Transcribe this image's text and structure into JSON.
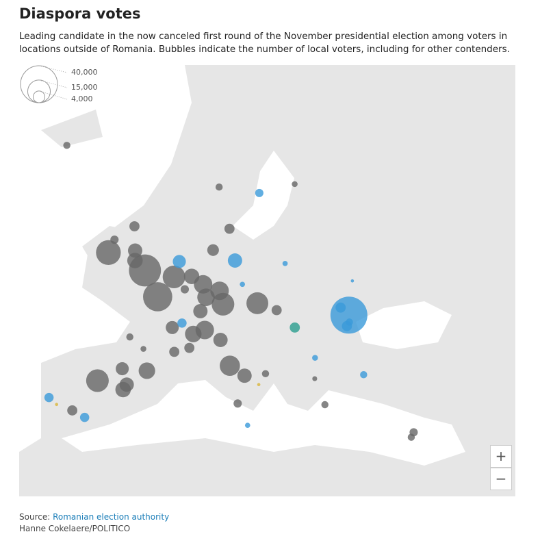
{
  "header": {
    "title": "Diaspora votes",
    "subtitle": "Leading candidate in the now canceled first round of the November presidential election among voters in locations outside of Romania. Bubbles indicate the number of local voters, including for other contenders."
  },
  "legend": {
    "sizes": [
      {
        "value": 40000,
        "label": "40,000"
      },
      {
        "value": 15000,
        "label": "15,000"
      },
      {
        "value": 4000,
        "label": "4,000"
      }
    ]
  },
  "bubbles": [
    {
      "lon": 28.8,
      "lat": 47.0,
      "voters": 40000,
      "color": "#3a9ad9"
    },
    {
      "lon": -0.1,
      "lat": 51.5,
      "voters": 30000,
      "color": "#666666"
    },
    {
      "lon": 2.35,
      "lat": 48.85,
      "voters": 25000,
      "color": "#666666"
    },
    {
      "lon": -6.3,
      "lat": 53.3,
      "voters": 18000,
      "color": "#666666"
    },
    {
      "lon": 4.35,
      "lat": 50.85,
      "voters": 15000,
      "color": "#666666"
    },
    {
      "lon": -3.7,
      "lat": 40.4,
      "voters": 15000,
      "color": "#666666"
    },
    {
      "lon": 11.6,
      "lat": 48.1,
      "voters": 15000,
      "color": "#666666"
    },
    {
      "lon": 16.4,
      "lat": 48.2,
      "voters": 14000,
      "color": "#666666"
    },
    {
      "lon": 12.5,
      "lat": 41.9,
      "voters": 12000,
      "color": "#666666"
    },
    {
      "lon": 8.7,
      "lat": 50.1,
      "voters": 10000,
      "color": "#666666"
    },
    {
      "lon": 11.1,
      "lat": 49.45,
      "voters": 10000,
      "color": "#666666"
    },
    {
      "lon": 9.2,
      "lat": 45.5,
      "voters": 10000,
      "color": "#666666"
    },
    {
      "lon": 9.2,
      "lat": 48.8,
      "voters": 9000,
      "color": "#666666"
    },
    {
      "lon": 7.7,
      "lat": 45.1,
      "voters": 8000,
      "color": "#666666"
    },
    {
      "lon": 2.2,
      "lat": 41.4,
      "voters": 8000,
      "color": "#666666"
    },
    {
      "lon": -1.9,
      "lat": 52.5,
      "voters": 7000,
      "color": "#666666"
    },
    {
      "lon": 6.95,
      "lat": 50.9,
      "voters": 7000,
      "color": "#666666"
    },
    {
      "lon": -0.4,
      "lat": 39.5,
      "voters": 7000,
      "color": "#666666"
    },
    {
      "lon": -2.2,
      "lat": 53.5,
      "voters": 6000,
      "color": "#666666"
    },
    {
      "lon": 8.5,
      "lat": 47.4,
      "voters": 6000,
      "color": "#666666"
    },
    {
      "lon": 11.3,
      "lat": 44.5,
      "voters": 6000,
      "color": "#666666"
    },
    {
      "lon": 14.3,
      "lat": 40.9,
      "voters": 6000,
      "color": "#666666"
    },
    {
      "lon": -0.05,
      "lat": 40.0,
      "voters": 6000,
      "color": "#666666"
    },
    {
      "lon": 13.4,
      "lat": 52.5,
      "voters": 6000,
      "color": "#3a9ad9"
    },
    {
      "lon": 4.9,
      "lat": 52.4,
      "voters": 5000,
      "color": "#3a9ad9"
    },
    {
      "lon": 4.85,
      "lat": 45.75,
      "voters": 5000,
      "color": "#666666"
    },
    {
      "lon": -0.9,
      "lat": 41.6,
      "voters": 5000,
      "color": "#666666"
    },
    {
      "lon": 10.0,
      "lat": 53.55,
      "voters": 4000,
      "color": "#666666"
    },
    {
      "lon": -3.2,
      "lat": 55.95,
      "voters": 3000,
      "color": "#666666"
    },
    {
      "lon": 12.6,
      "lat": 55.7,
      "voters": 3000,
      "color": "#666666"
    },
    {
      "lon": 19.0,
      "lat": 47.5,
      "voters": 3000,
      "color": "#666666"
    },
    {
      "lon": 21.2,
      "lat": 45.75,
      "voters": 3000,
      "color": "#2a9d8f"
    },
    {
      "lon": 5.4,
      "lat": 43.3,
      "voters": 3000,
      "color": "#666666"
    },
    {
      "lon": 7.3,
      "lat": 43.7,
      "voters": 3000,
      "color": "#666666"
    },
    {
      "lon": -6.0,
      "lat": 37.4,
      "voters": 3000,
      "color": "#666666"
    },
    {
      "lon": 27.9,
      "lat": 47.76,
      "voters": 3000,
      "color": "#3a9ad9"
    },
    {
      "lon": 28.2,
      "lat": 45.9,
      "voters": 3000,
      "color": "#3a9ad9"
    },
    {
      "lon": 6.1,
      "lat": 46.2,
      "voters": 2500,
      "color": "#3a9ad9"
    },
    {
      "lon": -4.4,
      "lat": 36.7,
      "voters": 2500,
      "color": "#3a9ad9"
    },
    {
      "lon": -9.1,
      "lat": 38.7,
      "voters": 2500,
      "color": "#3a9ad9"
    },
    {
      "lon": 18.1,
      "lat": 59.3,
      "voters": 2000,
      "color": "#3a9ad9"
    },
    {
      "lon": -5.9,
      "lat": 54.6,
      "voters": 2000,
      "color": "#666666"
    },
    {
      "lon": 13.4,
      "lat": 38.1,
      "voters": 2000,
      "color": "#666666"
    },
    {
      "lon": 6.1,
      "lat": 49.6,
      "voters": 2000,
      "color": "#666666"
    },
    {
      "lon": 33.4,
      "lat": 35.2,
      "voters": 2000,
      "color": "#666666"
    },
    {
      "lon": 10.75,
      "lat": 59.9,
      "voters": 1500,
      "color": "#666666"
    },
    {
      "lon": -21.9,
      "lat": 64.1,
      "voters": 1500,
      "color": "#666666"
    },
    {
      "lon": -0.6,
      "lat": 44.8,
      "voters": 1500,
      "color": "#666666"
    },
    {
      "lon": 16.9,
      "lat": 41.1,
      "voters": 1500,
      "color": "#666666"
    },
    {
      "lon": 23.7,
      "lat": 37.98,
      "voters": 1500,
      "color": "#666666"
    },
    {
      "lon": 29.0,
      "lat": 41.0,
      "voters": 1500,
      "color": "#3a9ad9"
    },
    {
      "lon": 28.65,
      "lat": 46.3,
      "voters": 1500,
      "color": "#3a9ad9"
    },
    {
      "lon": 33.0,
      "lat": 34.7,
      "voters": 1500,
      "color": "#666666"
    },
    {
      "lon": 24.9,
      "lat": 60.2,
      "voters": 1000,
      "color": "#666666"
    },
    {
      "lon": 1.4,
      "lat": 43.6,
      "voters": 1000,
      "color": "#666666"
    },
    {
      "lon": 23.3,
      "lat": 42.7,
      "voters": 1000,
      "color": "#3a9ad9"
    },
    {
      "lon": 21.0,
      "lat": 52.2,
      "voters": 800,
      "color": "#3a9ad9"
    },
    {
      "lon": 14.4,
      "lat": 50.1,
      "voters": 800,
      "color": "#3a9ad9"
    },
    {
      "lon": 14.5,
      "lat": 35.9,
      "voters": 800,
      "color": "#3a9ad9"
    },
    {
      "lon": 22.9,
      "lat": 40.6,
      "voters": 700,
      "color": "#666666"
    },
    {
      "lon": 30.5,
      "lat": 50.45,
      "voters": 300,
      "color": "#3a9ad9"
    },
    {
      "lon": -8.0,
      "lat": 38.0,
      "voters": 300,
      "color": "#d9b53a"
    },
    {
      "lon": 16.0,
      "lat": 40.0,
      "voters": 300,
      "color": "#d9b53a"
    }
  ],
  "zoom": {
    "in": "+",
    "out": "−"
  },
  "footer": {
    "source_label": "Source:",
    "source": "Romanian election authority",
    "credit": "Hanne Cokelaere/POLITICO"
  }
}
